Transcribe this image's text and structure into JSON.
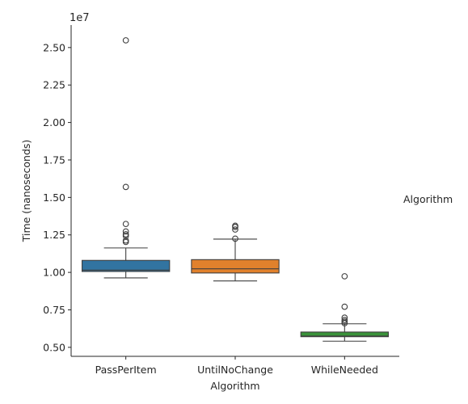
{
  "chart_data": {
    "type": "box",
    "xlabel": "Algorithm",
    "ylabel": "Time (nanoseconds)",
    "y_offset_label": "1e7",
    "ylim": [
      0.44,
      2.65
    ],
    "y_scale_factor": 10000000,
    "yticks": [
      0.5,
      0.75,
      1.0,
      1.25,
      1.5,
      1.75,
      2.0,
      2.25,
      2.5
    ],
    "ytick_labels": [
      "0.50",
      "0.75",
      "1.00",
      "1.25",
      "1.50",
      "1.75",
      "2.00",
      "2.25",
      "2.50"
    ],
    "legend_title": "Algorithm",
    "grid": false,
    "series": [
      {
        "name": "PassPerItem",
        "color": "#3274a1",
        "whisker_low": 0.963,
        "q1": 1.006,
        "median": 1.015,
        "q3": 1.08,
        "whisker_high": 1.163,
        "outliers": [
          1.203,
          1.213,
          1.243,
          1.254,
          1.273,
          1.323,
          1.57,
          2.548
        ]
      },
      {
        "name": "UntilNoChange",
        "color": "#e1812c",
        "whisker_low": 0.943,
        "q1": 0.996,
        "median": 1.024,
        "q3": 1.085,
        "whisker_high": 1.222,
        "outliers": [
          1.225,
          1.286,
          1.303,
          1.311
        ]
      },
      {
        "name": "WhileNeeded",
        "color": "#3a923a",
        "whisker_low": 0.541,
        "q1": 0.571,
        "median": 0.575,
        "q3": 0.602,
        "whisker_high": 0.657,
        "outliers": [
          0.661,
          0.671,
          0.682,
          0.698,
          0.771,
          0.974
        ]
      }
    ]
  }
}
